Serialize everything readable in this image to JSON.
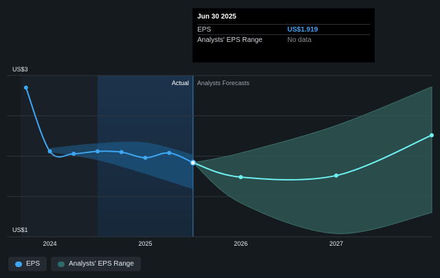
{
  "colors": {
    "background": "#151a1f",
    "eps_line": "#3ea6f2",
    "forecast_line": "#6ef0f0",
    "forecast_range": "#2f5a56",
    "past_range": "#1f6ea8",
    "grid": "#2e353c"
  },
  "tooltip": {
    "date": "Jun 30 2025",
    "rows": [
      {
        "label": "EPS",
        "value": "US$1.919"
      },
      {
        "label": "Analysts' EPS Range",
        "value": "No data"
      }
    ]
  },
  "legend": [
    {
      "label": "EPS",
      "color": "#3ea6f2",
      "icon": "eps-legend-dot"
    },
    {
      "label": "Analysts' EPS Range",
      "color": "#2f6b6a",
      "icon": "range-legend-dot"
    }
  ],
  "chart_data": {
    "type": "line",
    "y_labels": [
      "US$3",
      "US$1"
    ],
    "ylim": [
      1,
      3
    ],
    "x_ticks": [
      2024,
      2025,
      2026,
      2027
    ],
    "xlim": [
      2023.55,
      2028.0
    ],
    "sections": [
      "Actual",
      "Analysts Forecasts"
    ],
    "divider_x": 2025.5,
    "highlight_start_x": 2024.5,
    "grid": true,
    "series": [
      {
        "name": "EPS",
        "x": [
          2023.75,
          2024.0,
          2024.25,
          2024.5,
          2024.75,
          2025.0,
          2025.25,
          2025.5
        ],
        "y": [
          2.85,
          2.06,
          2.03,
          2.06,
          2.05,
          1.98,
          2.04,
          1.919
        ]
      },
      {
        "name": "Analysts' EPS Range",
        "role": "forecast",
        "x": [
          2025.5,
          2026.0,
          2027.0,
          2028.0
        ],
        "y": [
          1.919,
          1.74,
          1.76,
          2.26
        ]
      }
    ],
    "past_band": {
      "x": [
        2024.0,
        2024.5,
        2025.0,
        2025.5
      ],
      "upper": [
        2.1,
        2.16,
        2.17,
        2.02
      ],
      "lower": [
        2.05,
        1.95,
        1.78,
        1.59
      ]
    },
    "forecast_band": {
      "x": [
        2025.5,
        2026.0,
        2027.0,
        2028.0
      ],
      "upper": [
        1.919,
        2.04,
        2.38,
        2.86
      ],
      "lower": [
        1.919,
        1.42,
        1.04,
        1.3
      ]
    }
  }
}
